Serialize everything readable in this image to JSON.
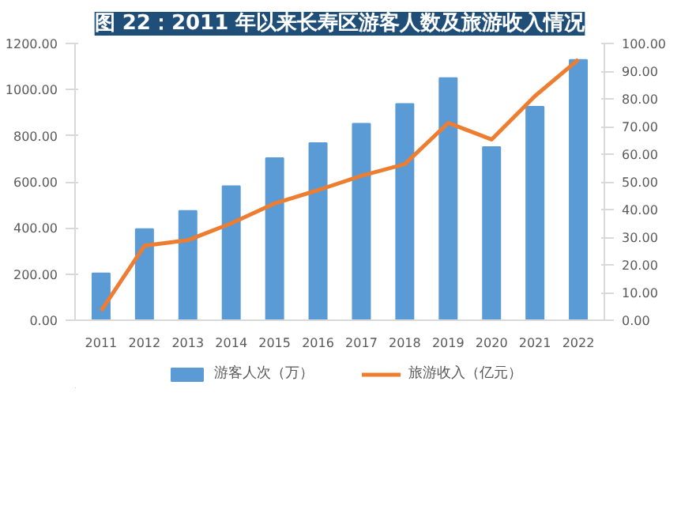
{
  "chart_data": {
    "type": "bar",
    "title": "图 22：2011 年以来长寿区游客人数及旅游收入情况",
    "categories": [
      "2011",
      "2012",
      "2013",
      "2014",
      "2015",
      "2016",
      "2017",
      "2018",
      "2019",
      "2020",
      "2021",
      "2022"
    ],
    "series": [
      {
        "name": "游客人次（万）",
        "color": "#5b9bd5",
        "values": [
          203,
          395,
          474,
          581,
          703,
          768,
          852,
          938,
          1050,
          751,
          926,
          1129
        ]
      },
      {
        "name": "旅游收入（亿元）",
        "type": "line",
        "axis": "y2",
        "color": "#ed7d31",
        "values": [
          3.4,
          26.9,
          28.9,
          35,
          42.2,
          47,
          52.2,
          56.4,
          71.3,
          65.3,
          81,
          94.2
        ]
      }
    ],
    "ylim": [
      0,
      1200
    ],
    "yticks": [
      {
        "value": 0,
        "label": "0.00"
      },
      {
        "value": 200,
        "label": "200.00"
      },
      {
        "value": 400,
        "label": "400.00"
      },
      {
        "value": 600,
        "label": "600.00"
      },
      {
        "value": 800,
        "label": "800.00"
      },
      {
        "value": 1000,
        "label": "1000.00"
      },
      {
        "value": 1200,
        "label": "1200.00"
      }
    ],
    "y2lim": [
      0,
      100
    ],
    "y2ticks": [
      {
        "value": 0,
        "label": "0.00"
      },
      {
        "value": 10,
        "label": "10.00"
      },
      {
        "value": 20,
        "label": "20.00"
      },
      {
        "value": 30,
        "label": "30.00"
      },
      {
        "value": 40,
        "label": "40.00"
      },
      {
        "value": 50,
        "label": "50.00"
      },
      {
        "value": 60,
        "label": "60.00"
      },
      {
        "value": 70,
        "label": "70.00"
      },
      {
        "value": 80,
        "label": "80.00"
      },
      {
        "value": 90,
        "label": "90.00"
      },
      {
        "value": 100,
        "label": "100.00"
      }
    ],
    "grid": false,
    "legend": "bottom"
  }
}
